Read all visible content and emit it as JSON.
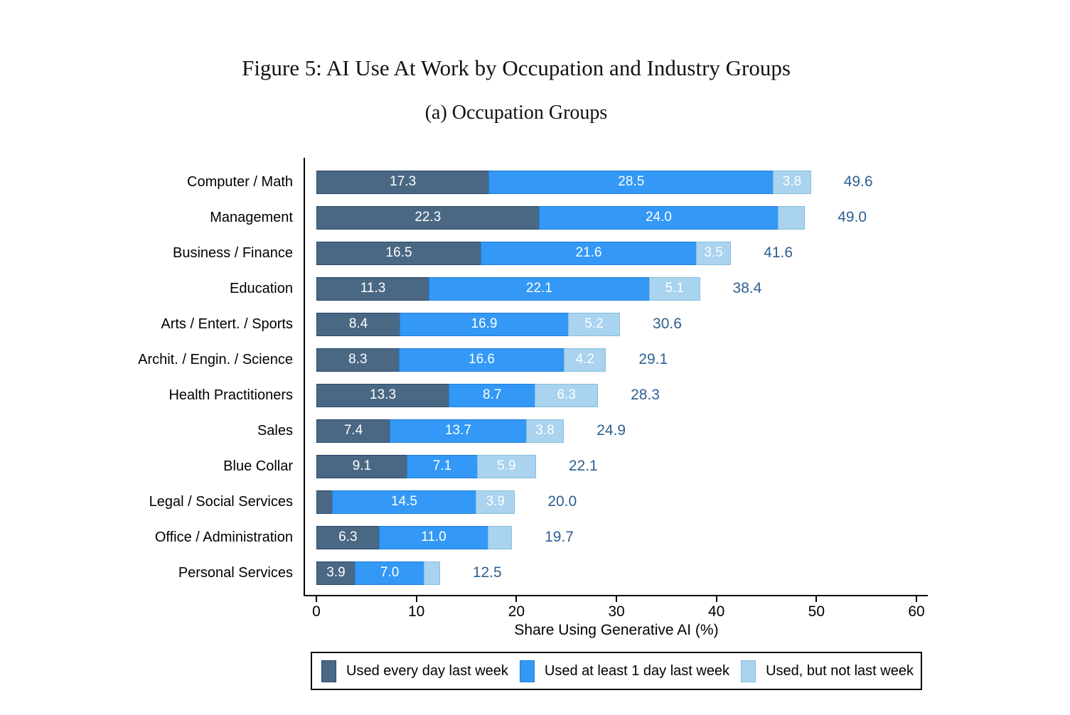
{
  "chart_data": {
    "type": "bar",
    "orientation": "horizontal",
    "stacked": true,
    "title": "Figure 5: AI Use At Work by Occupation and Industry Groups",
    "subtitle": "(a) Occupation Groups",
    "xlabel": "Share Using Generative AI (%)",
    "xlim": [
      0,
      60
    ],
    "xticks": [
      0,
      10,
      20,
      30,
      40,
      50,
      60
    ],
    "grid": false,
    "legend_position": "bottom",
    "value_label_color": "#ffffff",
    "total_label_color": "#2e6091",
    "axis_color": "#000000",
    "series": [
      {
        "name": "Used every day last week",
        "color": "#4a6884",
        "border": "#24466b"
      },
      {
        "name": "Used at least 1 day last week",
        "color": "#3398f6",
        "border": "#1e7ed8"
      },
      {
        "name": "Used, but not last week",
        "color": "#a9d3ee",
        "border": "#86bede"
      }
    ],
    "rows": [
      {
        "category": "Computer / Math",
        "values": [
          17.3,
          28.5,
          3.8
        ],
        "segment_labels": [
          "17.3",
          "28.5",
          "3.8"
        ],
        "total": "49.6"
      },
      {
        "category": "Management",
        "values": [
          22.3,
          24.0,
          2.7
        ],
        "segment_labels": [
          "22.3",
          "24.0",
          ""
        ],
        "total": "49.0"
      },
      {
        "category": "Business / Finance",
        "values": [
          16.5,
          21.6,
          3.5
        ],
        "segment_labels": [
          "16.5",
          "21.6",
          "3.5"
        ],
        "total": "41.6"
      },
      {
        "category": "Education",
        "values": [
          11.3,
          22.1,
          5.1
        ],
        "segment_labels": [
          "11.3",
          "22.1",
          "5.1"
        ],
        "total": "38.4"
      },
      {
        "category": "Arts / Entert. / Sports",
        "values": [
          8.4,
          16.9,
          5.2
        ],
        "segment_labels": [
          "8.4",
          "16.9",
          "5.2"
        ],
        "total": "30.6"
      },
      {
        "category": "Archit. / Engin. / Science",
        "values": [
          8.3,
          16.6,
          4.2
        ],
        "segment_labels": [
          "8.3",
          "16.6",
          "4.2"
        ],
        "total": "29.1"
      },
      {
        "category": "Health Practitioners",
        "values": [
          13.3,
          8.7,
          6.3
        ],
        "segment_labels": [
          "13.3",
          "8.7",
          "6.3"
        ],
        "total": "28.3"
      },
      {
        "category": "Sales",
        "values": [
          7.4,
          13.7,
          3.8
        ],
        "segment_labels": [
          "7.4",
          "13.7",
          "3.8"
        ],
        "total": "24.9"
      },
      {
        "category": "Blue Collar",
        "values": [
          9.1,
          7.1,
          5.9
        ],
        "segment_labels": [
          "9.1",
          "7.1",
          "5.9"
        ],
        "total": "22.1"
      },
      {
        "category": "Legal / Social Services",
        "values": [
          1.6,
          14.5,
          3.9
        ],
        "segment_labels": [
          "",
          "14.5",
          "3.9"
        ],
        "total": "20.0"
      },
      {
        "category": "Office / Administration",
        "values": [
          6.3,
          11.0,
          2.4
        ],
        "segment_labels": [
          "6.3",
          "11.0",
          ""
        ],
        "total": "19.7"
      },
      {
        "category": "Personal Services",
        "values": [
          3.9,
          7.0,
          1.6
        ],
        "segment_labels": [
          "3.9",
          "7.0",
          ""
        ],
        "total": "12.5"
      }
    ]
  }
}
